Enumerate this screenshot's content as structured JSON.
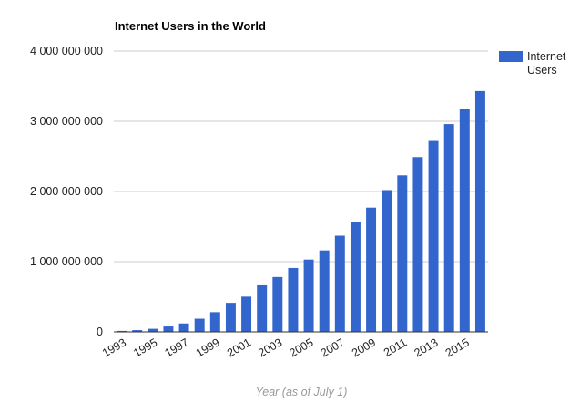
{
  "chart_data": {
    "type": "bar",
    "title": "Internet Users in the World",
    "xlabel": "Year (as of July 1)",
    "ylabel": "",
    "ylim": [
      0,
      4000000000
    ],
    "yticks": [
      0,
      1000000000,
      2000000000,
      3000000000,
      4000000000
    ],
    "ytick_labels": [
      "0",
      "1 000 000 000",
      "2 000 000 000",
      "3 000 000 000",
      "4 000 000 000"
    ],
    "xtick_labels": [
      "1993",
      "1995",
      "1997",
      "1999",
      "2001",
      "2003",
      "2005",
      "2007",
      "2009",
      "2011",
      "2013",
      "2015"
    ],
    "grid": true,
    "legend_position": "right",
    "categories": [
      "1993",
      "1994",
      "1995",
      "1996",
      "1997",
      "1998",
      "1999",
      "2000",
      "2001",
      "2002",
      "2003",
      "2004",
      "2005",
      "2006",
      "2007",
      "2008",
      "2009",
      "2010",
      "2011",
      "2012",
      "2013",
      "2014",
      "2015",
      "2016"
    ],
    "series": [
      {
        "name": "Internet Users",
        "color": "#3366cc",
        "values": [
          14000000,
          25000000,
          44000000,
          77000000,
          120000000,
          188000000,
          281000000,
          414000000,
          502000000,
          663000000,
          781000000,
          910000000,
          1030000000,
          1160000000,
          1370000000,
          1570000000,
          1770000000,
          2020000000,
          2230000000,
          2490000000,
          2720000000,
          2960000000,
          3180000000,
          3430000000
        ]
      }
    ]
  }
}
